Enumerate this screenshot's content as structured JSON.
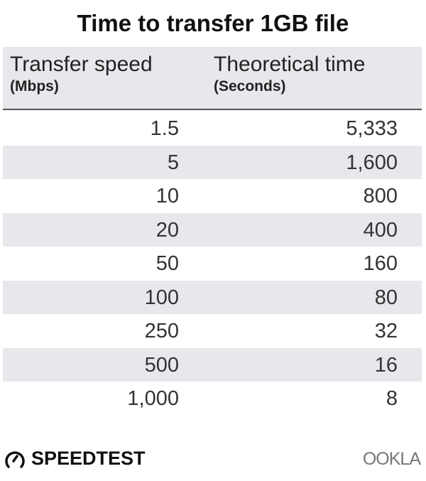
{
  "chart_data": {
    "type": "table",
    "title": "Time to transfer 1GB file",
    "columns": [
      {
        "label": "Transfer speed",
        "unit": "(Mbps)"
      },
      {
        "label": "Theoretical time",
        "unit": "(Seconds)"
      }
    ],
    "rows": [
      [
        "1.5",
        "5,333"
      ],
      [
        "5",
        "1,600"
      ],
      [
        "10",
        "800"
      ],
      [
        "20",
        "400"
      ],
      [
        "50",
        "160"
      ],
      [
        "100",
        "80"
      ],
      [
        "250",
        "32"
      ],
      [
        "500",
        "16"
      ],
      [
        "1,000",
        "8"
      ]
    ],
    "colors": {
      "header_bg": "#e8e7ec",
      "stripe_bg": "#e8e7ec",
      "divider": "#555555"
    }
  },
  "footer": {
    "brand_left": "SPEEDTEST",
    "brand_right": "OOKLA",
    "icon": "speedometer-icon"
  }
}
